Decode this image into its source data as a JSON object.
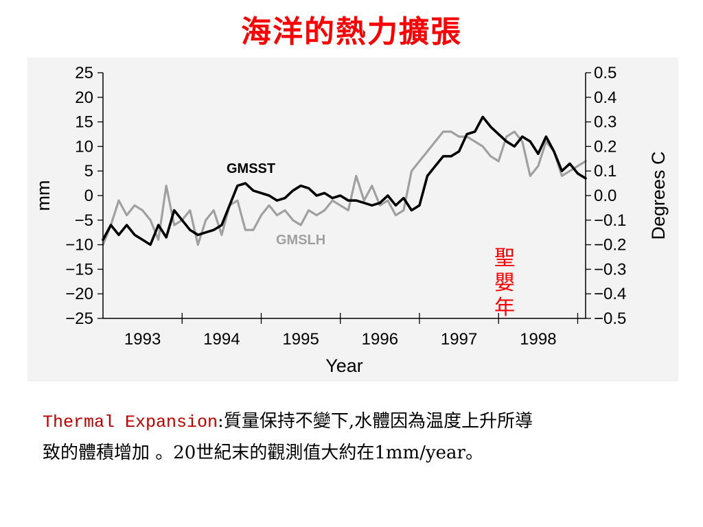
{
  "title": "海洋的熱力擴張",
  "caption": {
    "term": "Thermal Expansion",
    "colon": ":",
    "line1": "質量保持不變下,水體因為温度上升所導",
    "line2": "致的體積增加 。20世紀末的觀測值大約在1mm/year。"
  },
  "colors": {
    "title": "#ff0000",
    "term": "#c00000",
    "gmsst": "#000000",
    "gmslh": "#a0a0a0",
    "annotation": "#ff0000"
  },
  "chart_data": {
    "type": "line",
    "xlabel": "Year",
    "ylabel": "mm",
    "ylabel_right": "Degrees C",
    "xlim": [
      1992.5,
      1998.6
    ],
    "ylim": [
      -25,
      25
    ],
    "ylim_right": [
      -0.5,
      0.5
    ],
    "x_ticks": [
      "1993",
      "1994",
      "1995",
      "1996",
      "1997",
      "1998"
    ],
    "y_ticks": [
      "25",
      "20",
      "15",
      "10",
      "5",
      "0",
      "−5",
      "−10",
      "−15",
      "−20",
      "−25"
    ],
    "y_ticks_right": [
      "0.5",
      "0.4",
      "0.3",
      "0.2",
      "0.1",
      "0.0",
      "−0.1",
      "−0.2",
      "−0.3",
      "−0.4",
      "−0.5"
    ],
    "annotation": "聖嬰年",
    "series": [
      {
        "name": "GMSLH",
        "axis": "left_mm",
        "x": [
          1992.5,
          1992.6,
          1992.7,
          1992.8,
          1992.9,
          1993.0,
          1993.1,
          1993.2,
          1993.3,
          1993.4,
          1993.5,
          1993.6,
          1993.7,
          1993.8,
          1993.9,
          1994.0,
          1994.1,
          1994.2,
          1994.3,
          1994.4,
          1994.5,
          1994.6,
          1994.7,
          1994.8,
          1994.9,
          1995.0,
          1995.1,
          1995.2,
          1995.3,
          1995.4,
          1995.5,
          1995.6,
          1995.7,
          1995.8,
          1995.9,
          1996.0,
          1996.1,
          1996.2,
          1996.3,
          1996.4,
          1996.5,
          1996.6,
          1996.7,
          1996.8,
          1996.9,
          1997.0,
          1997.1,
          1997.2,
          1997.3,
          1997.4,
          1997.5,
          1997.6,
          1997.7,
          1997.8,
          1997.9,
          1998.0,
          1998.1,
          1998.2,
          1998.3,
          1998.4,
          1998.5,
          1998.6
        ],
        "y": [
          -10,
          -6,
          -1,
          -4,
          -2,
          -3,
          -5,
          -9,
          2,
          -6,
          -5,
          -3,
          -10,
          -5,
          -3,
          -8,
          -2,
          -1,
          -7,
          -7,
          -4,
          -2,
          -4,
          -3,
          -5,
          -6,
          -3,
          -4,
          -3,
          -1,
          -2,
          -3,
          4,
          -1,
          2,
          -2,
          -1,
          -4,
          -3,
          5,
          7,
          9,
          11,
          13,
          13,
          12,
          12,
          11,
          10,
          8,
          7,
          12,
          13,
          11,
          4,
          6,
          11,
          9,
          4,
          5,
          6,
          7
        ]
      },
      {
        "name": "GMSST",
        "axis": "right_degC",
        "x": [
          1992.5,
          1992.6,
          1992.7,
          1992.8,
          1992.9,
          1993.0,
          1993.1,
          1993.2,
          1993.3,
          1993.4,
          1993.5,
          1993.6,
          1993.7,
          1993.8,
          1993.9,
          1994.0,
          1994.1,
          1994.2,
          1994.3,
          1994.4,
          1994.5,
          1994.6,
          1994.7,
          1994.8,
          1994.9,
          1995.0,
          1995.1,
          1995.2,
          1995.3,
          1995.4,
          1995.5,
          1995.6,
          1995.7,
          1995.8,
          1995.9,
          1996.0,
          1996.1,
          1996.2,
          1996.3,
          1996.4,
          1996.5,
          1996.6,
          1996.7,
          1996.8,
          1996.9,
          1997.0,
          1997.1,
          1997.2,
          1997.3,
          1997.4,
          1997.5,
          1997.6,
          1997.7,
          1997.8,
          1997.9,
          1998.0,
          1998.1,
          1998.2,
          1998.3,
          1998.4,
          1998.5,
          1998.6
        ],
        "y": [
          -0.18,
          -0.12,
          -0.16,
          -0.12,
          -0.16,
          -0.18,
          -0.2,
          -0.12,
          -0.17,
          -0.06,
          -0.1,
          -0.14,
          -0.16,
          -0.15,
          -0.14,
          -0.12,
          -0.04,
          0.04,
          0.05,
          0.02,
          0.01,
          0.0,
          -0.02,
          -0.01,
          0.02,
          0.04,
          0.03,
          0.0,
          0.01,
          -0.01,
          0.0,
          -0.02,
          -0.02,
          -0.03,
          -0.04,
          -0.03,
          0.0,
          -0.04,
          -0.01,
          -0.06,
          -0.04,
          0.08,
          0.12,
          0.16,
          0.16,
          0.18,
          0.25,
          0.26,
          0.32,
          0.28,
          0.25,
          0.22,
          0.2,
          0.24,
          0.22,
          0.17,
          0.24,
          0.18,
          0.1,
          0.13,
          0.09,
          0.07
        ]
      }
    ]
  }
}
